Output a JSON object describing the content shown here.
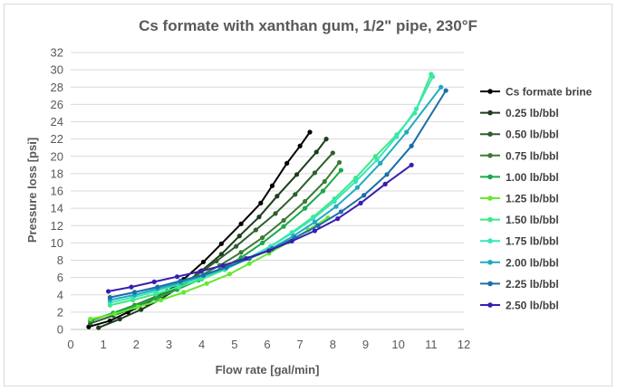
{
  "chart_data": {
    "type": "line",
    "title": "Cs formate with xanthan gum, 1/2\" pipe, 230°F",
    "xlabel": "Flow rate [gal/min]",
    "ylabel": "Pressure loss [psi]",
    "xlim": [
      0,
      12
    ],
    "ylim": [
      0,
      32
    ],
    "xticks": [
      "0",
      "1",
      "2",
      "3",
      "4",
      "5",
      "6",
      "7",
      "8",
      "9",
      "10",
      "11",
      "12"
    ],
    "yticks": [
      "0",
      "2",
      "4",
      "6",
      "8",
      "10",
      "12",
      "14",
      "16",
      "18",
      "20",
      "22",
      "24",
      "26",
      "28",
      "30",
      "32"
    ],
    "grid": true,
    "legend_position": "right",
    "series": [
      {
        "name": "Cs formate brine",
        "color": "#000000",
        "x": [
          0.55,
          1.2,
          1.75,
          2.3,
          2.95,
          3.45,
          4.05,
          4.6,
          5.2,
          5.8,
          6.15,
          6.6,
          7.0,
          7.3
        ],
        "y": [
          0.3,
          1.0,
          2.0,
          3.0,
          4.4,
          5.8,
          7.8,
          9.9,
          12.2,
          14.6,
          16.6,
          19.2,
          21.2,
          22.8
        ]
      },
      {
        "name": "0.25 lb/bbl",
        "color": "#1e3d1e",
        "x": [
          0.85,
          1.5,
          2.15,
          2.75,
          3.4,
          4.0,
          4.6,
          5.15,
          5.75,
          6.3,
          6.9,
          7.5,
          7.8
        ],
        "y": [
          0.2,
          1.2,
          2.3,
          3.5,
          5.1,
          6.8,
          8.7,
          10.8,
          13.0,
          15.4,
          17.9,
          20.5,
          22.0
        ]
      },
      {
        "name": "0.50 lb/bbl",
        "color": "#2e5e2e",
        "x": [
          0.6,
          1.3,
          1.95,
          2.6,
          3.25,
          3.85,
          4.45,
          5.05,
          5.65,
          6.25,
          6.85,
          7.45,
          8.0
        ],
        "y": [
          0.7,
          1.6,
          2.5,
          3.6,
          4.9,
          6.3,
          7.9,
          9.6,
          11.5,
          13.4,
          15.6,
          18.1,
          20.4
        ]
      },
      {
        "name": "0.75 lb/bbl",
        "color": "#3d7a35",
        "x": [
          0.6,
          1.3,
          1.95,
          2.6,
          3.25,
          3.9,
          4.55,
          5.2,
          5.85,
          6.5,
          7.15,
          7.75,
          8.2
        ],
        "y": [
          1.0,
          1.9,
          2.8,
          3.8,
          4.9,
          6.1,
          7.4,
          8.9,
          10.6,
          12.6,
          14.8,
          17.1,
          19.3
        ]
      },
      {
        "name": "1.00 lb/bbl",
        "color": "#1aa84a",
        "x": [
          0.65,
          1.3,
          1.95,
          2.6,
          3.25,
          3.9,
          4.55,
          5.2,
          5.85,
          6.5,
          7.15,
          7.7,
          8.25
        ],
        "y": [
          1.1,
          1.9,
          2.7,
          3.6,
          4.6,
          5.7,
          6.9,
          8.3,
          10.0,
          11.9,
          14.0,
          16.0,
          18.4
        ]
      },
      {
        "name": "1.25 lb/bbl",
        "color": "#66e832",
        "x": [
          0.6,
          1.35,
          2.05,
          2.75,
          3.45,
          4.15,
          4.85,
          5.45,
          6.05,
          6.65,
          7.25,
          7.85
        ],
        "y": [
          1.2,
          1.8,
          2.6,
          3.4,
          4.3,
          5.3,
          6.4,
          7.6,
          8.8,
          10.1,
          11.5,
          12.9
        ]
      },
      {
        "name": "1.50 lb/bbl",
        "color": "#3fe886",
        "x": [
          1.2,
          1.9,
          2.6,
          3.3,
          4.0,
          4.7,
          5.4,
          6.1,
          6.75,
          7.4,
          8.05,
          8.7,
          9.3,
          9.95,
          10.5,
          11.0
        ],
        "y": [
          2.8,
          3.4,
          4.1,
          4.9,
          5.8,
          6.9,
          8.2,
          9.6,
          11.2,
          13.0,
          15.1,
          17.5,
          20.0,
          22.5,
          25.0,
          29.5
        ]
      },
      {
        "name": "1.75 lb/bbl",
        "color": "#38e6b8",
        "x": [
          1.2,
          1.9,
          2.6,
          3.3,
          4.0,
          4.7,
          5.4,
          6.1,
          6.75,
          7.4,
          8.05,
          8.7,
          9.35,
          9.95,
          10.55,
          11.05
        ],
        "y": [
          3.1,
          3.7,
          4.4,
          5.2,
          6.0,
          7.0,
          8.2,
          9.6,
          11.1,
          12.8,
          14.8,
          17.1,
          19.6,
          22.3,
          25.5,
          29.2
        ]
      },
      {
        "name": "2.00 lb/bbl",
        "color": "#22a9c2",
        "x": [
          1.2,
          1.95,
          2.65,
          3.35,
          4.05,
          4.75,
          5.45,
          6.15,
          6.8,
          7.45,
          8.1,
          8.75,
          9.45,
          10.25,
          11.3
        ],
        "y": [
          3.4,
          4.0,
          4.7,
          5.4,
          6.2,
          7.1,
          8.2,
          9.4,
          10.8,
          12.4,
          14.2,
          16.4,
          19.2,
          22.8,
          28.0
        ]
      },
      {
        "name": "2.25 lb/bbl",
        "color": "#1b6fa8",
        "x": [
          1.2,
          1.95,
          2.65,
          3.35,
          4.05,
          4.75,
          5.45,
          6.15,
          6.85,
          7.55,
          8.25,
          8.95,
          9.65,
          10.4,
          11.45
        ],
        "y": [
          3.7,
          4.3,
          4.9,
          5.6,
          6.3,
          7.2,
          8.2,
          9.3,
          10.6,
          12.0,
          13.6,
          15.5,
          17.9,
          21.2,
          27.6
        ]
      },
      {
        "name": "2.50 lb/bbl",
        "color": "#3a1db0",
        "x": [
          1.15,
          1.85,
          2.55,
          3.25,
          3.95,
          4.65,
          5.35,
          6.05,
          6.75,
          7.45,
          8.15,
          8.85,
          9.6,
          10.4
        ],
        "y": [
          4.4,
          4.9,
          5.5,
          6.1,
          6.7,
          7.4,
          8.2,
          9.1,
          10.2,
          11.4,
          12.8,
          14.6,
          16.8,
          19.0
        ]
      }
    ]
  }
}
